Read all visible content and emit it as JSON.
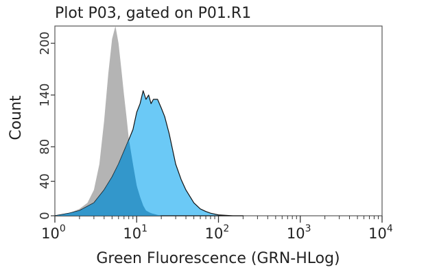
{
  "chart_data": {
    "type": "area",
    "title": "Plot P03, gated on P01.R1",
    "xlabel": "Green Fluorescence (GRN-HLog)",
    "ylabel": "Count",
    "x_scale": "log",
    "xlim": [
      1,
      10000
    ],
    "ylim": [
      0,
      220
    ],
    "x_ticks": [
      {
        "base": "10",
        "exp": "0",
        "value": 1
      },
      {
        "base": "10",
        "exp": "1",
        "value": 10
      },
      {
        "base": "10",
        "exp": "2",
        "value": 100
      },
      {
        "base": "10",
        "exp": "3",
        "value": 1000
      },
      {
        "base": "10",
        "exp": "4",
        "value": 10000
      }
    ],
    "y_ticks": [
      {
        "label": "0",
        "value": 0
      },
      {
        "label": "40",
        "value": 40
      },
      {
        "label": "80",
        "value": 80
      },
      {
        "label": "140",
        "value": 140
      },
      {
        "label": "200",
        "value": 200
      }
    ],
    "grid": false,
    "series": [
      {
        "color": "#b4b4b4",
        "x": [
          1.0,
          1.5,
          2.0,
          2.5,
          3.0,
          3.5,
          4.0,
          4.5,
          5.0,
          5.5,
          6.0,
          6.5,
          7.0,
          7.5,
          8.0,
          9.0,
          10.0,
          11.0,
          12.0,
          13.0,
          15.0,
          18.0,
          20.0,
          25.0
        ],
        "y": [
          0,
          3,
          8,
          15,
          30,
          60,
          110,
          165,
          205,
          220,
          200,
          170,
          140,
          115,
          90,
          60,
          35,
          22,
          12,
          6,
          3,
          1,
          0,
          0
        ]
      },
      {
        "color": "#5ec4f5",
        "x": [
          1.0,
          1.5,
          2.0,
          3.0,
          4.0,
          5.0,
          6.0,
          7.0,
          8.0,
          9.0,
          10.0,
          11.0,
          12.0,
          13.0,
          14.0,
          15.0,
          16.0,
          18.0,
          20.0,
          22.0,
          25.0,
          30.0,
          35.0,
          40.0,
          50.0,
          60.0,
          70.0,
          80.0,
          100.0,
          150.0,
          200.0
        ],
        "y": [
          0,
          3,
          6,
          15,
          30,
          45,
          60,
          75,
          88,
          100,
          120,
          130,
          145,
          135,
          140,
          130,
          135,
          135,
          125,
          115,
          95,
          60,
          42,
          30,
          15,
          8,
          5,
          3,
          1,
          0,
          0
        ]
      }
    ]
  }
}
